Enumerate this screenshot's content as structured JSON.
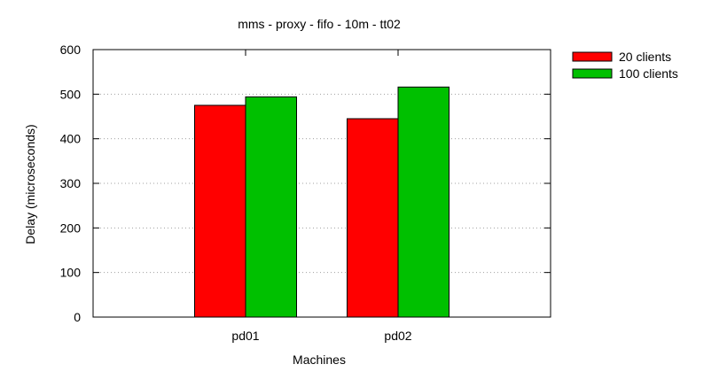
{
  "chart_data": {
    "type": "bar",
    "title": "mms - proxy - fifo - 10m - tt02",
    "xlabel": "Machines",
    "ylabel": "Delay (microseconds)",
    "categories": [
      "pd01",
      "pd02"
    ],
    "series": [
      {
        "name": "20 clients",
        "values": [
          475,
          445
        ],
        "color": "#ff0000"
      },
      {
        "name": "100 clients",
        "values": [
          494,
          516
        ],
        "color": "#00c000"
      }
    ],
    "ylim": [
      0,
      600
    ],
    "yticks": [
      0,
      100,
      200,
      300,
      400,
      500,
      600
    ],
    "grid": true,
    "legend_position": "top-right outside"
  }
}
